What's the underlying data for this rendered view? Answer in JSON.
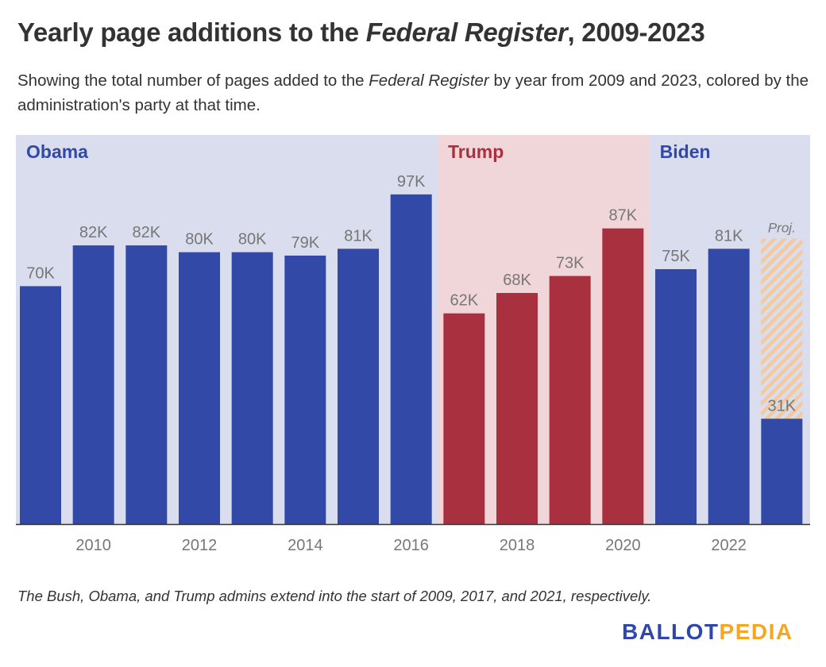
{
  "title": {
    "prefix": "Yearly page additions to the ",
    "italic": "Federal Register",
    "suffix": ", 2009-2023"
  },
  "subtitle": {
    "prefix": "Showing the total number of pages added to the ",
    "italic": "Federal Register",
    "suffix": " by year from 2009 and 2023, colored by the administration's party at that time."
  },
  "footnote": "The Bush, Obama, and Trump admins extend into the start of 2009, 2017, and 2021, respectively.",
  "logo": {
    "part1": "BALLOT",
    "part2": "PEDIA"
  },
  "colors": {
    "democrat": "#3249a8",
    "republican": "#a9313f",
    "democrat_bg": "#d9ddee",
    "republican_bg": "#f0d6d9",
    "projection_hatch": "#f4c99b",
    "label": "#777777"
  },
  "chart_data": {
    "type": "bar",
    "title": "Yearly page additions to the Federal Register, 2009-2023",
    "xlabel": "",
    "ylabel": "",
    "ylim": [
      0,
      100000
    ],
    "grid": false,
    "categories": [
      2009,
      2010,
      2011,
      2012,
      2013,
      2014,
      2015,
      2016,
      2017,
      2018,
      2019,
      2020,
      2021,
      2022,
      2023
    ],
    "values": [
      70000,
      82000,
      82000,
      80000,
      80000,
      79000,
      81000,
      97000,
      62000,
      68000,
      73000,
      87000,
      75000,
      81000,
      31000
    ],
    "data_labels": [
      "70K",
      "82K",
      "82K",
      "80K",
      "80K",
      "79K",
      "81K",
      "97K",
      "62K",
      "68K",
      "73K",
      "87K",
      "75K",
      "81K",
      "31K"
    ],
    "party": [
      "D",
      "D",
      "D",
      "D",
      "D",
      "D",
      "D",
      "D",
      "R",
      "R",
      "R",
      "R",
      "D",
      "D",
      "D"
    ],
    "projection": {
      "year": 2023,
      "label": "Proj.",
      "value": 84000
    },
    "x_tick_labels": [
      "2010",
      "2012",
      "2014",
      "2016",
      "2018",
      "2020",
      "2022"
    ],
    "administrations": [
      {
        "name": "Obama",
        "party": "D",
        "start": 2009,
        "end": 2016
      },
      {
        "name": "Trump",
        "party": "R",
        "start": 2017,
        "end": 2020
      },
      {
        "name": "Biden",
        "party": "D",
        "start": 2021,
        "end": 2023
      }
    ]
  }
}
